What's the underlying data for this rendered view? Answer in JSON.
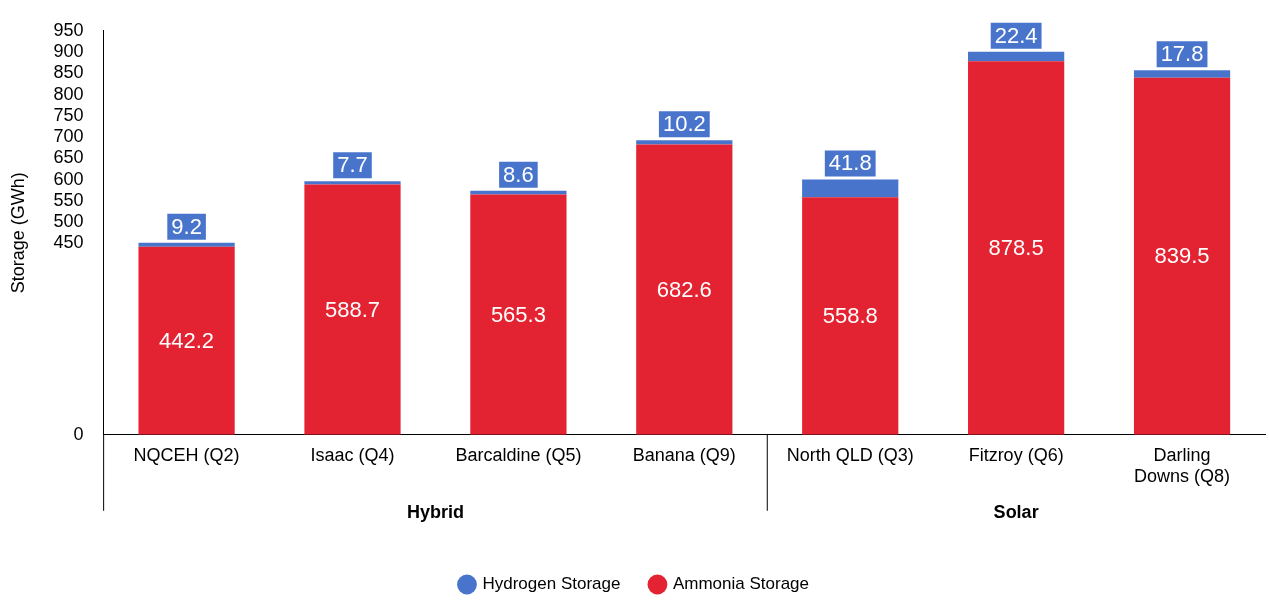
{
  "chart_data": {
    "type": "bar",
    "stacked": true,
    "ylabel": "Storage (GWh)",
    "categories": [
      "NQCEH (Q2)",
      "Isaac (Q4)",
      "Barcaldine (Q5)",
      "Banana (Q9)",
      "North QLD (Q3)",
      "Fitzroy (Q6)",
      "Darling Downs (Q8)"
    ],
    "series": [
      {
        "name": "Ammonia Storage",
        "color": "#e32331",
        "values": [
          442.2,
          588.7,
          565.3,
          682.6,
          558.8,
          878.5,
          839.5
        ]
      },
      {
        "name": "Hydrogen Storage",
        "color": "#4874cb",
        "values": [
          9.2,
          7.7,
          8.6,
          10.2,
          41.8,
          22.4,
          17.8
        ]
      }
    ],
    "ylim": [
      0,
      950
    ],
    "yticks": [
      0,
      450,
      500,
      550,
      600,
      650,
      700,
      750,
      800,
      850,
      900,
      950
    ],
    "data_labels": true,
    "grid": false,
    "legend": "bottom",
    "annotations": [
      "Hybrid",
      "Solar"
    ]
  }
}
